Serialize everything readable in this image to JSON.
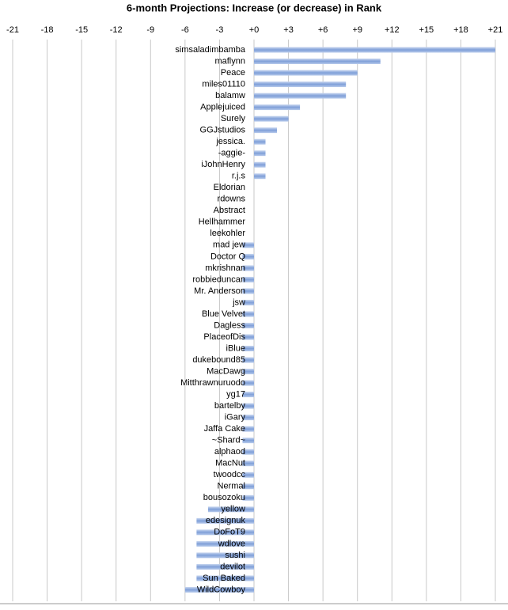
{
  "chart_data": {
    "type": "hbar",
    "title": "6-month Projections: Increase (or decrease) in Rank",
    "categories": [
      "simsaladimbamba",
      "maflynn",
      "Peace",
      "miles01110",
      "balamw",
      "Applejuiced",
      "Surely",
      "GGJstudios",
      "jessica.",
      "-aggie-",
      "iJohnHenry",
      "r.j.s",
      "Eldorian",
      "rdowns",
      "Abstract",
      "Hellhammer",
      "leekohler",
      "mad jew",
      "Doctor Q",
      "mkrishnan",
      "robbieduncan",
      "Mr. Anderson",
      "jsw",
      "Blue Velvet",
      "Dagless",
      "PlaceofDis",
      "iBlue",
      "dukebound85",
      "MacDawg",
      "Mitthrawnuruodo",
      "yg17",
      "bartelby",
      "iGary",
      "Jaffa Cake",
      "~Shard~",
      "alphaod",
      "MacNut",
      "twoodcc",
      "Nermal",
      "bousozoku",
      "yellow",
      "edesignuk",
      "DoFoT9",
      "wdlove",
      "sushi",
      "devilot",
      "Sun Baked",
      "WildCowboy"
    ],
    "values": [
      21,
      11,
      9,
      8,
      8,
      4,
      3,
      2,
      1,
      1,
      1,
      1,
      0,
      0,
      0,
      0,
      0,
      -1,
      -1,
      -1,
      -1,
      -1,
      -1,
      -1,
      -1,
      -1,
      -1,
      -1,
      -1,
      -1,
      -1,
      -1,
      -1,
      -1,
      -1,
      -1,
      -1,
      -1,
      -1,
      -1,
      -4,
      -5,
      -5,
      -5,
      -5,
      -5,
      -5,
      -6
    ],
    "color": "#8eaadb",
    "xlim": [
      -21,
      21
    ],
    "xticks": [
      -21,
      -18,
      -15,
      -12,
      -9,
      -6,
      -3,
      {
        "value": 0,
        "label": "+0"
      },
      {
        "value": 3,
        "label": "+3"
      },
      {
        "value": 6,
        "label": "+6"
      },
      {
        "value": 9,
        "label": "+9"
      },
      {
        "value": 12,
        "label": "+12"
      },
      {
        "value": 15,
        "label": "+15"
      },
      {
        "value": 18,
        "label": "+18"
      },
      {
        "value": 21,
        "label": "+21"
      }
    ],
    "grid": true
  }
}
